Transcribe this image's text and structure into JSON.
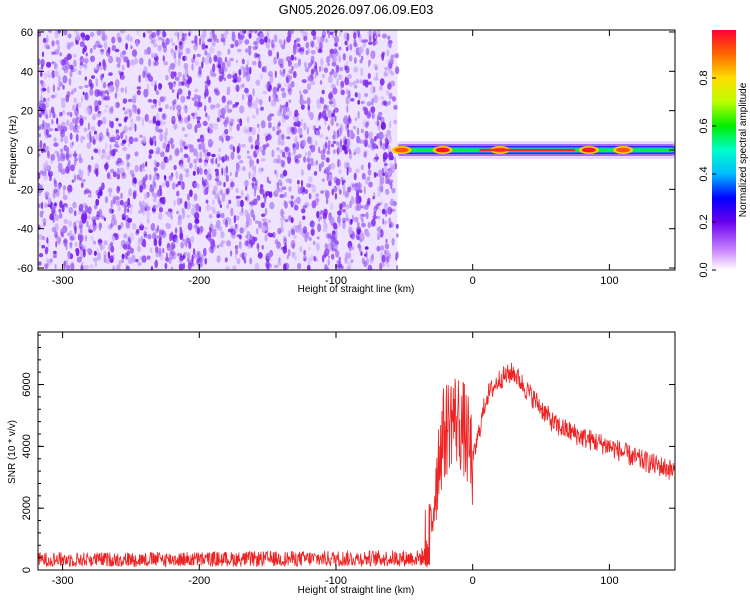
{
  "title": "GN05.2026.097.06.09.E03",
  "colors": {
    "snr_line": "#ee2222",
    "spectrogram_noise": "#7a20f0",
    "frame": "#000000"
  },
  "chart_data": [
    {
      "type": "heatmap",
      "title": "GN05.2026.097.06.09.E03",
      "xlabel": "Height of straight line (km)",
      "ylabel": "Frequency (Hz)",
      "xlim": [
        -318,
        148
      ],
      "ylim": [
        -61,
        61
      ],
      "x_ticks": [
        -300,
        -200,
        -100,
        0,
        100
      ],
      "x_tick_labels": [
        "-300",
        "-200",
        "-100",
        "0",
        "100"
      ],
      "y_ticks": [
        60,
        40,
        20,
        0,
        -20,
        -40,
        -60
      ],
      "y_tick_labels": [
        "60",
        "40",
        "20",
        "0",
        "-20",
        "-40",
        "-60"
      ],
      "noise_region_x": [
        -318,
        -55
      ],
      "signal_band_x": [
        -55,
        148
      ],
      "signal_band_center_hz": 0,
      "signal_peaks": [
        {
          "x": -52,
          "amp": 0.8
        },
        {
          "x": -22,
          "amp": 0.95
        },
        {
          "x": 20,
          "amp": 0.9
        },
        {
          "x": 85,
          "amp": 0.95
        },
        {
          "x": 110,
          "amp": 0.85
        }
      ],
      "colorbar": {
        "label": "Normalized spectral amplitude",
        "range": [
          0,
          1
        ],
        "ticks": [
          0.0,
          0.2,
          0.4,
          0.6,
          0.8
        ],
        "tick_labels": [
          "0.0",
          "0.2",
          "0.4",
          "0.6",
          "0.8"
        ],
        "colormap": "rainbow"
      },
      "grid": false
    },
    {
      "type": "line",
      "xlabel": "Height of straight line (km)",
      "ylabel": "SNR (10 * v/v)",
      "xlim": [
        -318,
        148
      ],
      "ylim": [
        0,
        7700
      ],
      "x_ticks": [
        -300,
        -200,
        -100,
        0,
        100
      ],
      "x_tick_labels": [
        "-300",
        "-200",
        "-100",
        "0",
        "100"
      ],
      "y_ticks": [
        0,
        2000,
        4000,
        6000
      ],
      "y_tick_labels": [
        "0",
        "2000",
        "4000",
        "6000"
      ],
      "series": [
        {
          "color": "#ee2222",
          "x": [
            -318,
            -250,
            -150,
            -40,
            -32,
            -28,
            -24,
            -20,
            -15,
            -10,
            -6,
            0,
            10,
            20,
            30,
            40,
            60,
            80,
            100,
            120,
            148
          ],
          "y": [
            400,
            400,
            420,
            450,
            600,
            2500,
            4000,
            4500,
            5000,
            4800,
            4500,
            3500,
            5600,
            6200,
            6400,
            5800,
            4700,
            4300,
            4000,
            3600,
            3200
          ]
        }
      ],
      "grid": false
    }
  ]
}
